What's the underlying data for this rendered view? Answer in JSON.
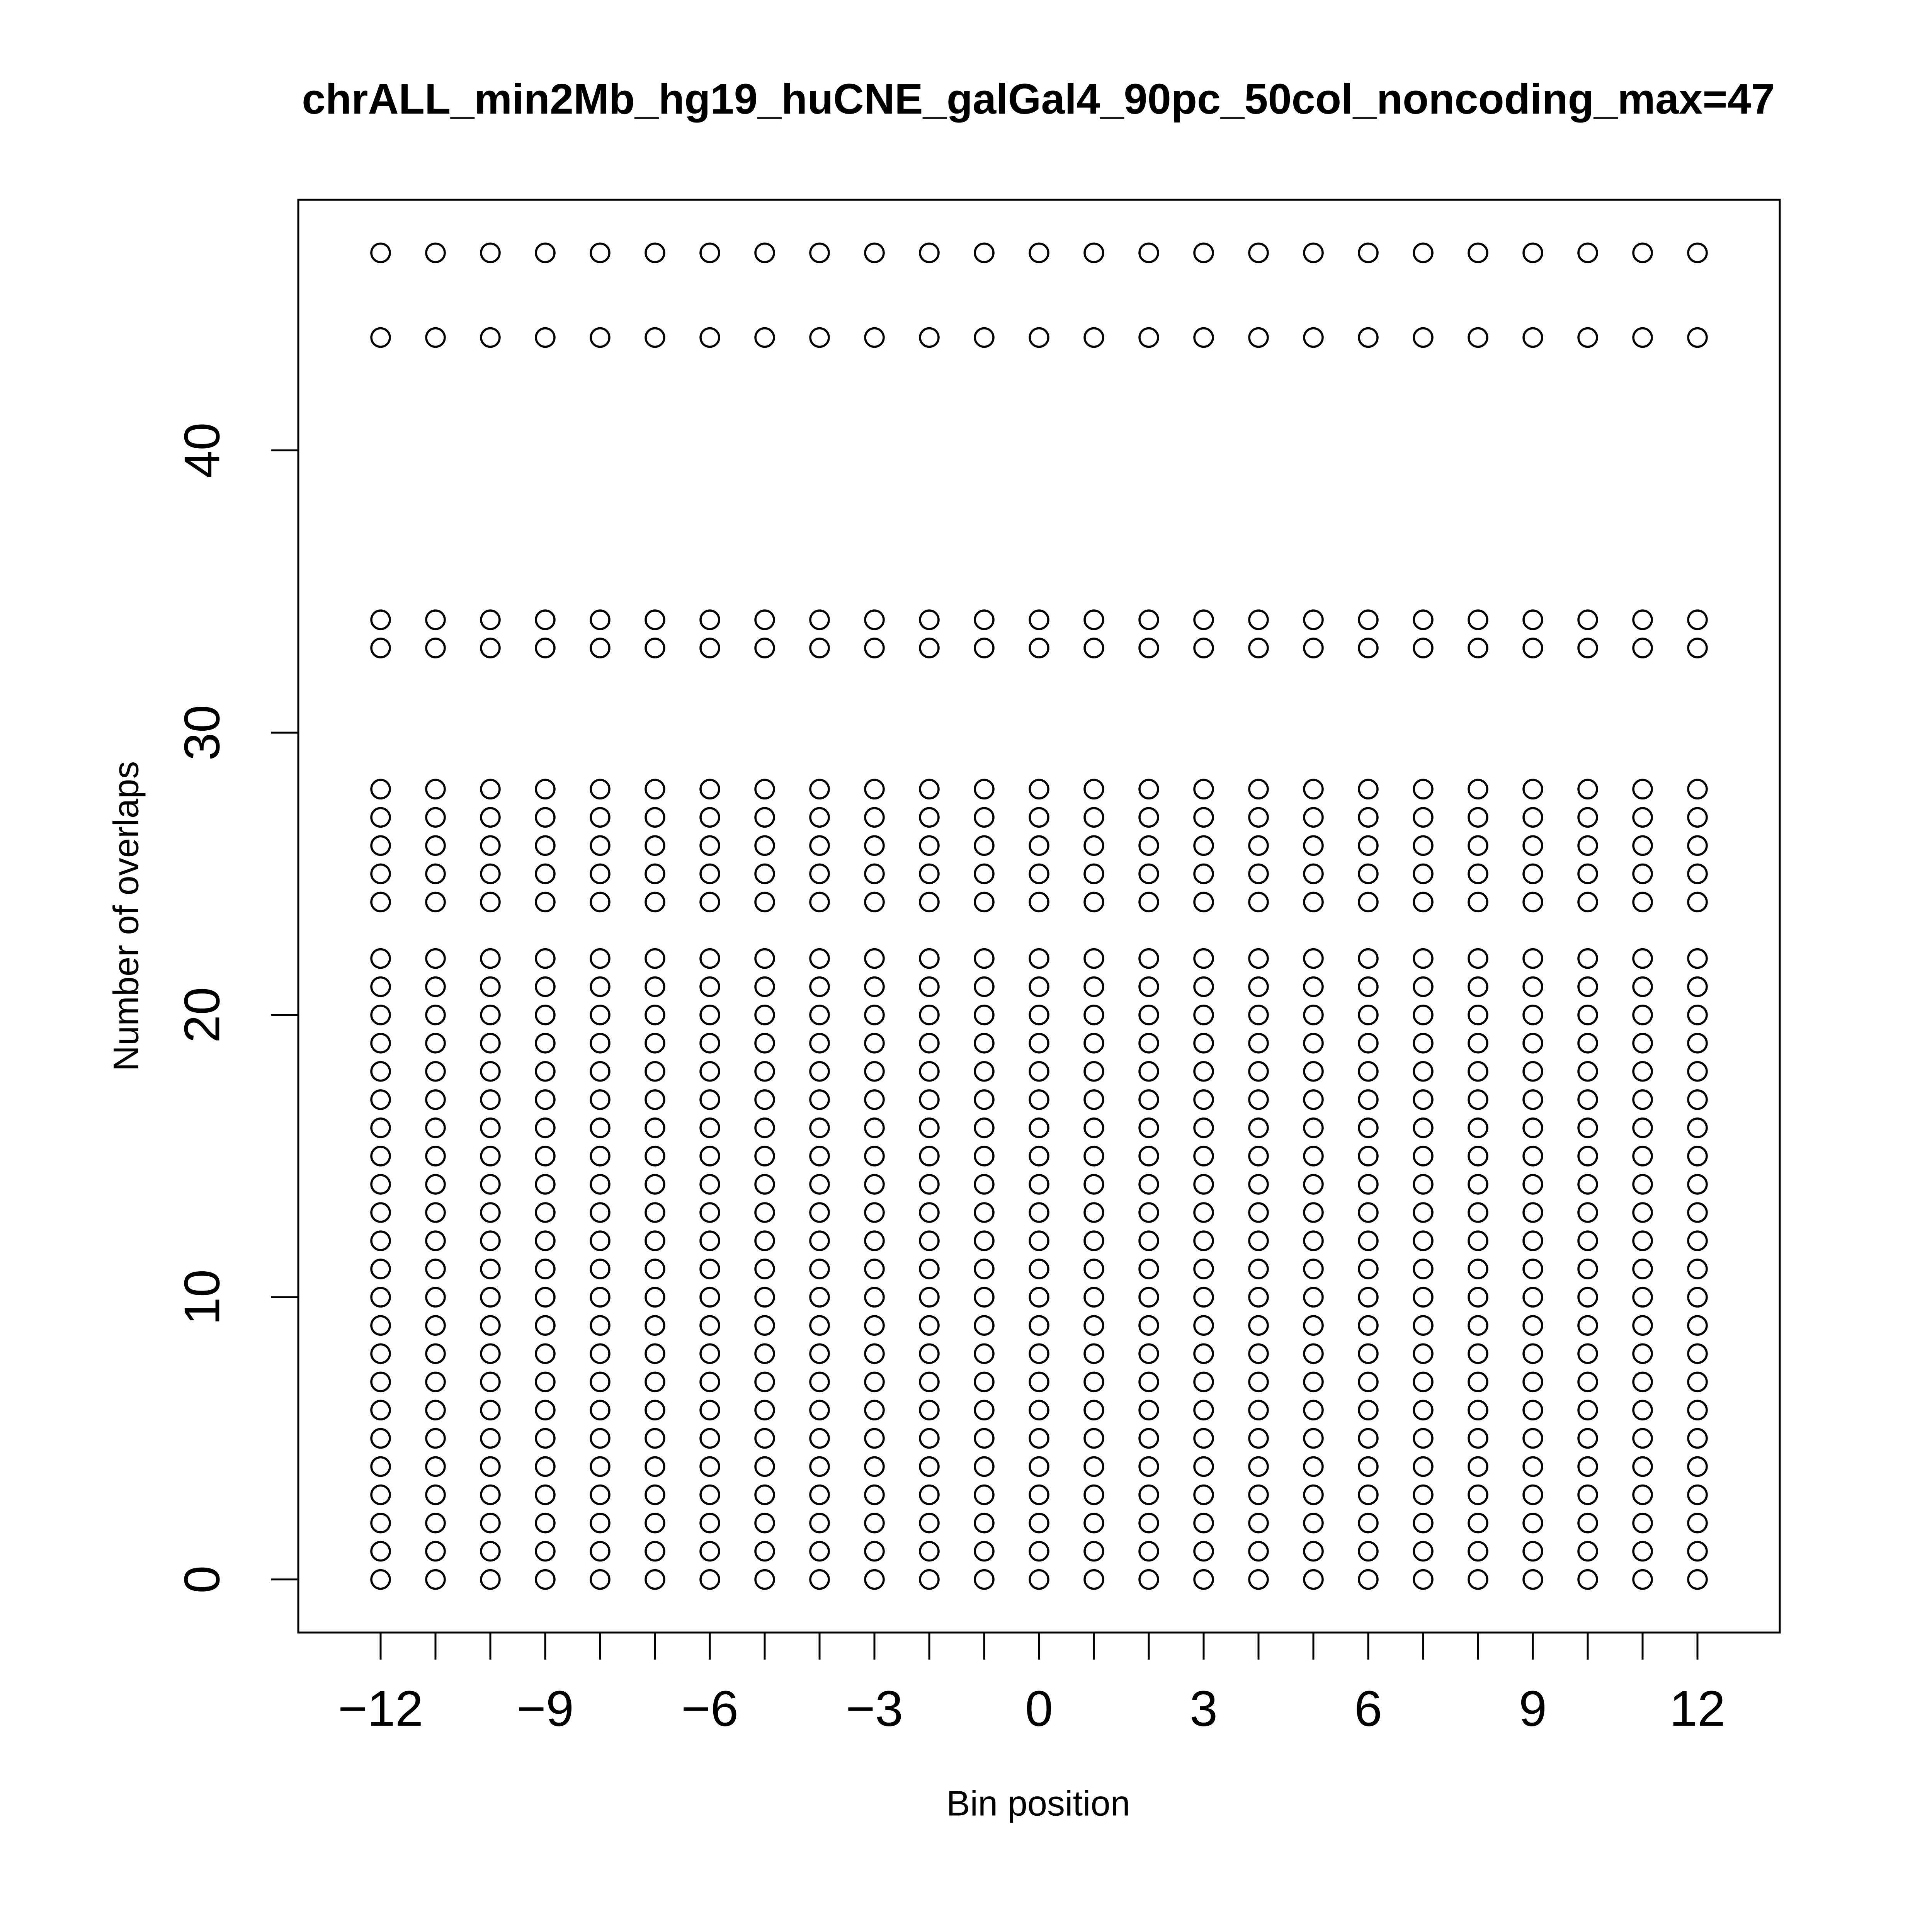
{
  "chart_data": {
    "type": "scatter",
    "title": "chrALL_min2Mb_hg19_huCNE_galGal4_90pc_50col_noncoding_max=47",
    "x_label": "Bin position",
    "y_label": "Number of overlaps",
    "xlim": [
      -13.5,
      13.5
    ],
    "ylim": [
      -1.88,
      48.88
    ],
    "xticks": [
      {
        "value": -12,
        "label": "−12"
      },
      {
        "value": -9,
        "label": "−9"
      },
      {
        "value": -6,
        "label": "−6"
      },
      {
        "value": -3,
        "label": "−3"
      },
      0,
      3,
      6,
      9,
      12
    ],
    "yticks": [
      0,
      10,
      20,
      30,
      40
    ],
    "color": "#000000",
    "columns": [
      {
        "x": -12,
        "values": [
          0,
          1,
          2,
          3,
          4,
          5,
          6,
          7,
          8,
          9,
          10,
          11,
          12,
          13,
          14,
          15,
          16,
          17,
          18,
          19,
          20,
          21,
          22,
          24,
          25,
          26,
          27,
          28,
          33,
          34,
          44,
          47
        ]
      },
      {
        "x": -11,
        "values": [
          0,
          1,
          2,
          3,
          4,
          5,
          6,
          7,
          8,
          9,
          10,
          11,
          12,
          13,
          14,
          15,
          16,
          17,
          18,
          19,
          20,
          21,
          22,
          24,
          25,
          26,
          27,
          28,
          33,
          34,
          44,
          47
        ]
      },
      {
        "x": -10,
        "values": [
          0,
          1,
          2,
          3,
          4,
          5,
          6,
          7,
          8,
          9,
          10,
          11,
          12,
          13,
          14,
          15,
          16,
          17,
          18,
          19,
          20,
          21,
          22,
          24,
          25,
          26,
          27,
          28,
          33,
          34,
          44,
          47
        ]
      },
      {
        "x": -9,
        "values": [
          0,
          1,
          2,
          3,
          4,
          5,
          6,
          7,
          8,
          9,
          10,
          11,
          12,
          13,
          14,
          15,
          16,
          17,
          18,
          19,
          20,
          21,
          22,
          24,
          25,
          26,
          27,
          28,
          33,
          34,
          44,
          47
        ]
      },
      {
        "x": -8,
        "values": [
          0,
          1,
          2,
          3,
          4,
          5,
          6,
          7,
          8,
          9,
          10,
          11,
          12,
          13,
          14,
          15,
          16,
          17,
          18,
          19,
          20,
          21,
          22,
          24,
          25,
          26,
          27,
          28,
          33,
          34,
          44,
          47
        ]
      },
      {
        "x": -7,
        "values": [
          0,
          1,
          2,
          3,
          4,
          5,
          6,
          7,
          8,
          9,
          10,
          11,
          12,
          13,
          14,
          15,
          16,
          17,
          18,
          19,
          20,
          21,
          22,
          24,
          25,
          26,
          27,
          28,
          33,
          34,
          44,
          47
        ]
      },
      {
        "x": -6,
        "values": [
          0,
          1,
          2,
          3,
          4,
          5,
          6,
          7,
          8,
          9,
          10,
          11,
          12,
          13,
          14,
          15,
          16,
          17,
          18,
          19,
          20,
          21,
          22,
          24,
          25,
          26,
          27,
          28,
          33,
          34,
          44,
          47
        ]
      },
      {
        "x": -5,
        "values": [
          0,
          1,
          2,
          3,
          4,
          5,
          6,
          7,
          8,
          9,
          10,
          11,
          12,
          13,
          14,
          15,
          16,
          17,
          18,
          19,
          20,
          21,
          22,
          24,
          25,
          26,
          27,
          28,
          33,
          34,
          44,
          47
        ]
      },
      {
        "x": -4,
        "values": [
          0,
          1,
          2,
          3,
          4,
          5,
          6,
          7,
          8,
          9,
          10,
          11,
          12,
          13,
          14,
          15,
          16,
          17,
          18,
          19,
          20,
          21,
          22,
          24,
          25,
          26,
          27,
          28,
          33,
          34,
          44,
          47
        ]
      },
      {
        "x": -3,
        "values": [
          0,
          1,
          2,
          3,
          4,
          5,
          6,
          7,
          8,
          9,
          10,
          11,
          12,
          13,
          14,
          15,
          16,
          17,
          18,
          19,
          20,
          21,
          22,
          24,
          25,
          26,
          27,
          28,
          33,
          34,
          44,
          47
        ]
      },
      {
        "x": -2,
        "values": [
          0,
          1,
          2,
          3,
          4,
          5,
          6,
          7,
          8,
          9,
          10,
          11,
          12,
          13,
          14,
          15,
          16,
          17,
          18,
          19,
          20,
          21,
          22,
          24,
          25,
          26,
          27,
          28,
          33,
          34,
          44,
          47
        ]
      },
      {
        "x": -1,
        "values": [
          0,
          1,
          2,
          3,
          4,
          5,
          6,
          7,
          8,
          9,
          10,
          11,
          12,
          13,
          14,
          15,
          16,
          17,
          18,
          19,
          20,
          21,
          22,
          24,
          25,
          26,
          27,
          28,
          33,
          34,
          44,
          47
        ]
      },
      {
        "x": 0,
        "values": [
          0,
          1,
          2,
          3,
          4,
          5,
          6,
          7,
          8,
          9,
          10,
          11,
          12,
          13,
          14,
          15,
          16,
          17,
          18,
          19,
          20,
          21,
          22,
          24,
          25,
          26,
          27,
          28,
          33,
          34,
          44,
          47
        ]
      },
      {
        "x": 1,
        "values": [
          0,
          1,
          2,
          3,
          4,
          5,
          6,
          7,
          8,
          9,
          10,
          11,
          12,
          13,
          14,
          15,
          16,
          17,
          18,
          19,
          20,
          21,
          22,
          24,
          25,
          26,
          27,
          28,
          33,
          34,
          44,
          47
        ]
      },
      {
        "x": 2,
        "values": [
          0,
          1,
          2,
          3,
          4,
          5,
          6,
          7,
          8,
          9,
          10,
          11,
          12,
          13,
          14,
          15,
          16,
          17,
          18,
          19,
          20,
          21,
          22,
          24,
          25,
          26,
          27,
          28,
          33,
          34,
          44,
          47
        ]
      },
      {
        "x": 3,
        "values": [
          0,
          1,
          2,
          3,
          4,
          5,
          6,
          7,
          8,
          9,
          10,
          11,
          12,
          13,
          14,
          15,
          16,
          17,
          18,
          19,
          20,
          21,
          22,
          24,
          25,
          26,
          27,
          28,
          33,
          34,
          44,
          47
        ]
      },
      {
        "x": 4,
        "values": [
          0,
          1,
          2,
          3,
          4,
          5,
          6,
          7,
          8,
          9,
          10,
          11,
          12,
          13,
          14,
          15,
          16,
          17,
          18,
          19,
          20,
          21,
          22,
          24,
          25,
          26,
          27,
          28,
          33,
          34,
          44,
          47
        ]
      },
      {
        "x": 5,
        "values": [
          0,
          1,
          2,
          3,
          4,
          5,
          6,
          7,
          8,
          9,
          10,
          11,
          12,
          13,
          14,
          15,
          16,
          17,
          18,
          19,
          20,
          21,
          22,
          24,
          25,
          26,
          27,
          28,
          33,
          34,
          44,
          47
        ]
      },
      {
        "x": 6,
        "values": [
          0,
          1,
          2,
          3,
          4,
          5,
          6,
          7,
          8,
          9,
          10,
          11,
          12,
          13,
          14,
          15,
          16,
          17,
          18,
          19,
          20,
          21,
          22,
          24,
          25,
          26,
          27,
          28,
          33,
          34,
          44,
          47
        ]
      },
      {
        "x": 7,
        "values": [
          0,
          1,
          2,
          3,
          4,
          5,
          6,
          7,
          8,
          9,
          10,
          11,
          12,
          13,
          14,
          15,
          16,
          17,
          18,
          19,
          20,
          21,
          22,
          24,
          25,
          26,
          27,
          28,
          33,
          34,
          44,
          47
        ]
      },
      {
        "x": 8,
        "values": [
          0,
          1,
          2,
          3,
          4,
          5,
          6,
          7,
          8,
          9,
          10,
          11,
          12,
          13,
          14,
          15,
          16,
          17,
          18,
          19,
          20,
          21,
          22,
          24,
          25,
          26,
          27,
          28,
          33,
          34,
          44,
          47
        ]
      },
      {
        "x": 9,
        "values": [
          0,
          1,
          2,
          3,
          4,
          5,
          6,
          7,
          8,
          9,
          10,
          11,
          12,
          13,
          14,
          15,
          16,
          17,
          18,
          19,
          20,
          21,
          22,
          24,
          25,
          26,
          27,
          28,
          33,
          34,
          44,
          47
        ]
      },
      {
        "x": 10,
        "values": [
          0,
          1,
          2,
          3,
          4,
          5,
          6,
          7,
          8,
          9,
          10,
          11,
          12,
          13,
          14,
          15,
          16,
          17,
          18,
          19,
          20,
          21,
          22,
          24,
          25,
          26,
          27,
          28,
          33,
          34,
          44,
          47
        ]
      },
      {
        "x": 11,
        "values": [
          0,
          1,
          2,
          3,
          4,
          5,
          6,
          7,
          8,
          9,
          10,
          11,
          12,
          13,
          14,
          15,
          16,
          17,
          18,
          19,
          20,
          21,
          22,
          24,
          25,
          26,
          27,
          28,
          33,
          34,
          44,
          47
        ]
      },
      {
        "x": 12,
        "values": [
          0,
          1,
          2,
          3,
          4,
          5,
          6,
          7,
          8,
          9,
          10,
          11,
          12,
          13,
          14,
          15,
          16,
          17,
          18,
          19,
          20,
          21,
          22,
          24,
          25,
          26,
          27,
          28,
          33,
          34,
          44,
          47
        ]
      }
    ]
  }
}
